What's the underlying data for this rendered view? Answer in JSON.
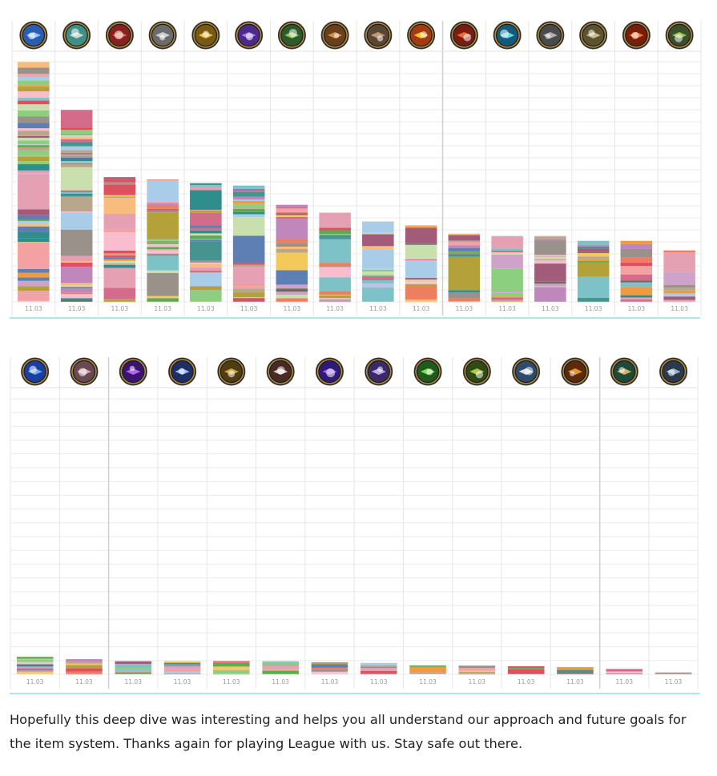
{
  "chart_data": [
    {
      "type": "bar",
      "stacked": true,
      "title": "",
      "xlabel": "",
      "ylabel": "",
      "categories": [
        "11.03",
        "11.03",
        "11.03",
        "11.03",
        "11.03",
        "11.03",
        "11.03",
        "11.03",
        "11.03",
        "11.03",
        "11.03",
        "11.03",
        "11.03",
        "11.03",
        "11.03",
        "11.03"
      ],
      "values": [
        100,
        80,
        52,
        51,
        49.5,
        48.5,
        40.5,
        37.2,
        33.5,
        32,
        28.5,
        27.5,
        27.5,
        25.5,
        25.5,
        21.5
      ],
      "icons": [
        "sapphire-gem-icon",
        "conch-horn-icon",
        "red-armor-icon",
        "fanged-helmet-icon",
        "golden-cannon-icon",
        "purple-spiral-icon",
        "green-bow-icon",
        "leather-satchel-icon",
        "bronze-pauldron-icon",
        "flame-blade-icon",
        "crimson-gauntlet-icon",
        "teal-crest-icon",
        "iron-visor-icon",
        "golden-helm-icon",
        "fire-sword-icon",
        "green-dagger-icon"
      ],
      "ylim": [
        0,
        100
      ],
      "grid": true,
      "legend": "none"
    },
    {
      "type": "bar",
      "stacked": true,
      "title": "",
      "xlabel": "",
      "ylabel": "",
      "categories": [
        "11.03",
        "11.03",
        "11.03",
        "11.03",
        "11.03",
        "11.03",
        "11.03",
        "11.03",
        "11.03",
        "11.03",
        "11.03",
        "11.03",
        "11.03",
        "11.03"
      ],
      "values": [
        6.4,
        5.6,
        4.8,
        4.8,
        4.8,
        4.8,
        4.4,
        4.2,
        3.3,
        3.2,
        3.0,
        2.7,
        2.0,
        0.7
      ],
      "icons": [
        "blue-crystal-icon",
        "silver-shield-icon",
        "violet-orb-icon",
        "frost-wing-icon",
        "golden-serpent-icon",
        "white-spear-icon",
        "amethyst-gem-icon",
        "arcane-staff-icon",
        "emerald-blade-icon",
        "jade-dragon-icon",
        "silver-fin-icon",
        "fire-vial-icon",
        "emerald-scepter-icon",
        "steel-cleaver-icon"
      ],
      "ylim": [
        0,
        100
      ],
      "grid": true,
      "legend": "none"
    }
  ],
  "caption": "Hopefully this deep dive was interesting and helps you all understand our approach and future goals for the item system. Thanks again for playing League with us. Stay safe out there.",
  "colors": {
    "palette": [
      "#45948f",
      "#f3c95c",
      "#5eaa4e",
      "#d36c8a",
      "#a9cce8",
      "#f3a1a1",
      "#b5a13a",
      "#f19a3f",
      "#5d7fb3",
      "#8ccf7e",
      "#dd5060",
      "#cfa2c9",
      "#6f6a62",
      "#f9bdd0",
      "#f8bd7c",
      "#bf87bb",
      "#a35b7a",
      "#c9dfae",
      "#9b918b",
      "#ed7f5e",
      "#7cc2c6",
      "#b8a78a",
      "#2f8d8b",
      "#e6a0b4"
    ],
    "gridline": "#ebebeb",
    "baseline": "#55d4cb"
  }
}
